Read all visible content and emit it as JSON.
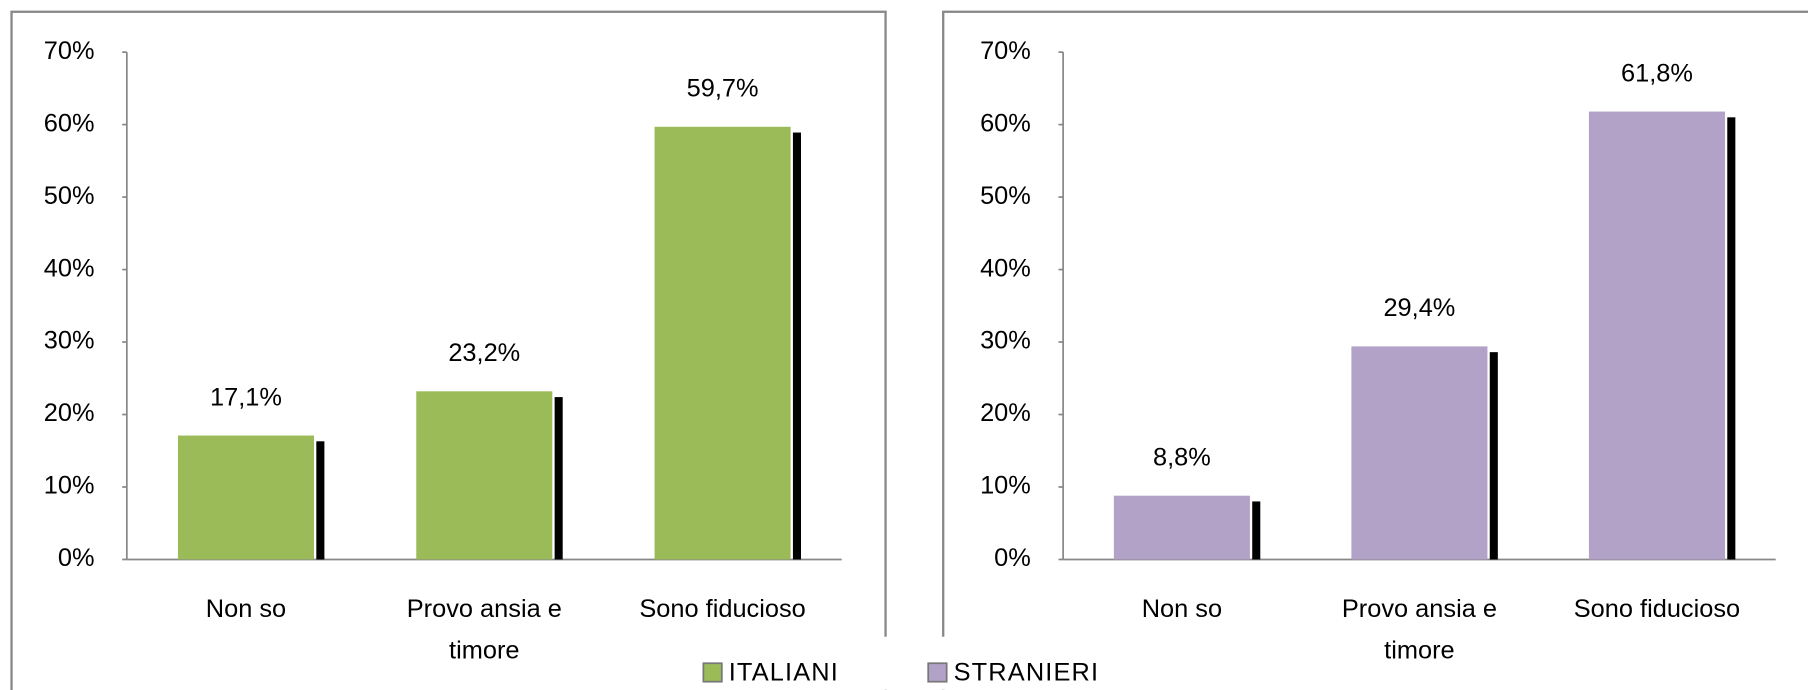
{
  "chart_data": [
    {
      "type": "bar",
      "categories": [
        "Non so",
        "Provo ansia e timore",
        "Sono fiducioso"
      ],
      "series": [
        {
          "name": "ITALIANI",
          "color": "#9bbb59",
          "values": [
            17.1,
            23.2,
            59.7
          ],
          "value_labels": [
            "17,1%",
            "23,2%",
            "59,7%"
          ]
        }
      ],
      "ylim": [
        0,
        70
      ],
      "yticks": [
        {
          "value": 0,
          "label": "0%"
        },
        {
          "value": 10,
          "label": "10%"
        },
        {
          "value": 20,
          "label": "20%"
        },
        {
          "value": 30,
          "label": "30%"
        },
        {
          "value": 40,
          "label": "40%"
        },
        {
          "value": 50,
          "label": "50%"
        },
        {
          "value": 60,
          "label": "60%"
        },
        {
          "value": 70,
          "label": "70%"
        }
      ]
    },
    {
      "type": "bar",
      "categories": [
        "Non so",
        "Provo ansia e timore",
        "Sono fiducioso"
      ],
      "series": [
        {
          "name": "STRANIERI",
          "color": "#b3a2c7",
          "values": [
            8.8,
            29.4,
            61.8
          ],
          "value_labels": [
            "8,8%",
            "29,4%",
            "61,8%"
          ]
        }
      ],
      "ylim": [
        0,
        70
      ],
      "yticks": [
        {
          "value": 0,
          "label": "0%"
        },
        {
          "value": 10,
          "label": "10%"
        },
        {
          "value": 20,
          "label": "20%"
        },
        {
          "value": 30,
          "label": "30%"
        },
        {
          "value": 40,
          "label": "40%"
        },
        {
          "value": 50,
          "label": "50%"
        },
        {
          "value": 60,
          "label": "60%"
        },
        {
          "value": 70,
          "label": "70%"
        }
      ]
    }
  ]
}
